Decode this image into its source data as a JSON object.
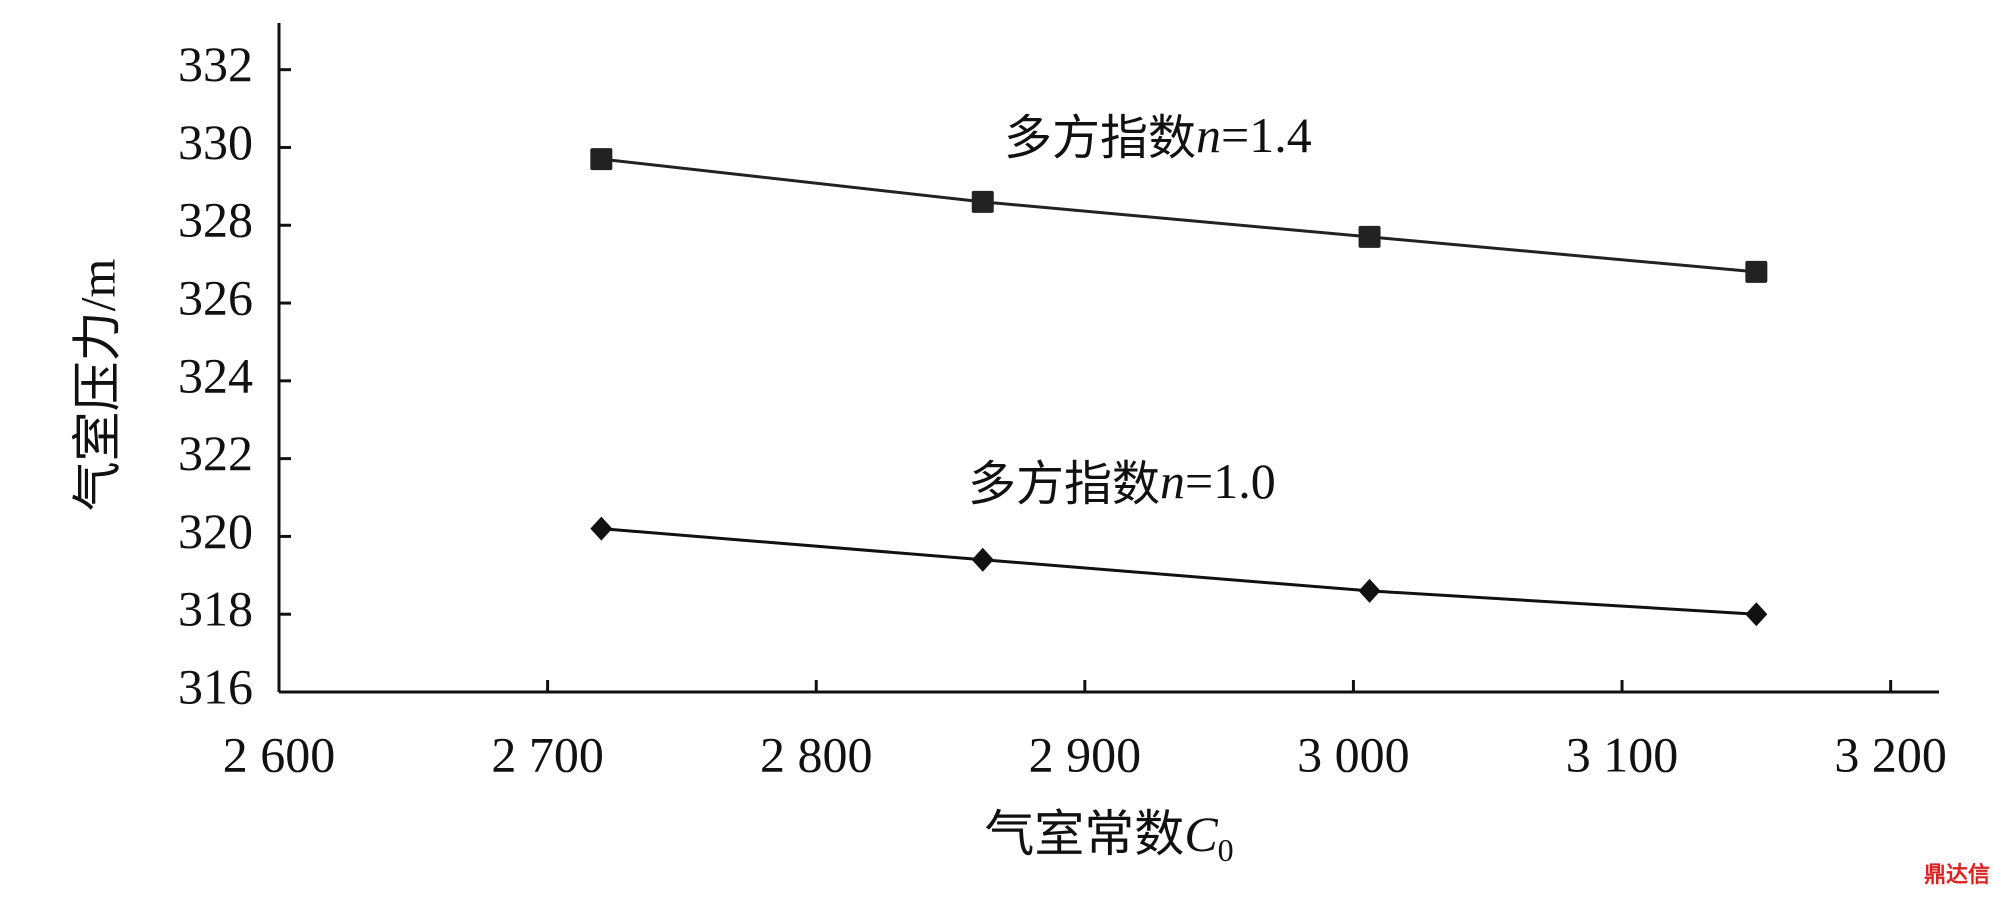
{
  "chart_data": {
    "type": "line",
    "xlabel": [
      "气室常数",
      "C",
      "0"
    ],
    "ylabel": "气室压力/m",
    "xlim": [
      2600,
      3218
    ],
    "ylim": [
      316,
      333.2
    ],
    "xticks": [
      {
        "value": 2600,
        "label": "2 600"
      },
      {
        "value": 2700,
        "label": "2 700"
      },
      {
        "value": 2800,
        "label": "2 800"
      },
      {
        "value": 2900,
        "label": "2 900"
      },
      {
        "value": 3000,
        "label": "3 000"
      },
      {
        "value": 3100,
        "label": "3 100"
      },
      {
        "value": 3200,
        "label": "3 200"
      }
    ],
    "yticks": [
      316,
      318,
      320,
      322,
      324,
      326,
      328,
      330,
      332
    ],
    "x": [
      2720,
      2862,
      3006,
      3150
    ],
    "series": [
      {
        "name": [
          "多方指数",
          "n",
          "=1.4"
        ],
        "color": "#222222",
        "marker": "square",
        "values": [
          329.7,
          328.6,
          327.7,
          326.8
        ]
      },
      {
        "name": [
          "多方指数",
          "n",
          "=1.0"
        ],
        "color": "#111111",
        "marker": "diamond",
        "values": [
          320.2,
          319.4,
          318.6,
          318.0
        ]
      }
    ],
    "watermark": "鼎达信"
  }
}
